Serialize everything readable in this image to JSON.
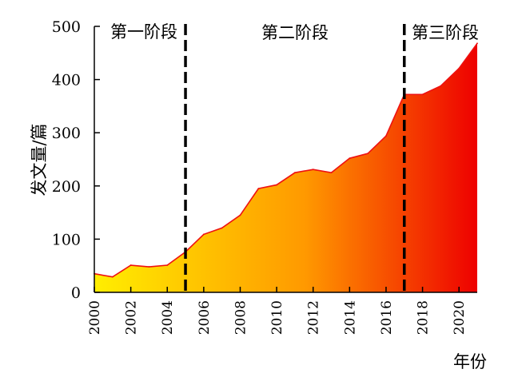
{
  "chart_data": {
    "type": "area",
    "ylabel": "发文量/篇",
    "xlabel": "年份",
    "ylim": [
      0,
      500
    ],
    "xlim": [
      2000,
      2021
    ],
    "yticks": [
      0,
      100,
      200,
      300,
      400,
      500
    ],
    "xticks": [
      2000,
      2002,
      2004,
      2006,
      2008,
      2010,
      2012,
      2014,
      2016,
      2018,
      2020
    ],
    "x": [
      2000,
      2001,
      2002,
      2003,
      2004,
      2005,
      2006,
      2007,
      2008,
      2009,
      2010,
      2011,
      2012,
      2013,
      2014,
      2015,
      2016,
      2017,
      2018,
      2019,
      2020,
      2021
    ],
    "values": [
      35,
      29,
      51,
      48,
      51,
      76,
      109,
      121,
      145,
      195,
      202,
      225,
      231,
      225,
      252,
      261,
      294,
      372,
      372,
      388,
      421,
      468
    ],
    "phases": [
      {
        "label": "第一阶段"
      },
      {
        "label": "第二阶段"
      },
      {
        "label": "第三阶段"
      }
    ],
    "phase_boundaries": [
      2005,
      2017
    ],
    "colors": {
      "gradient_start": "#ffee00",
      "gradient_mid": "#ff9900",
      "gradient_end": "#ee0000",
      "line": "#ee1111",
      "divider": "#000000"
    }
  }
}
